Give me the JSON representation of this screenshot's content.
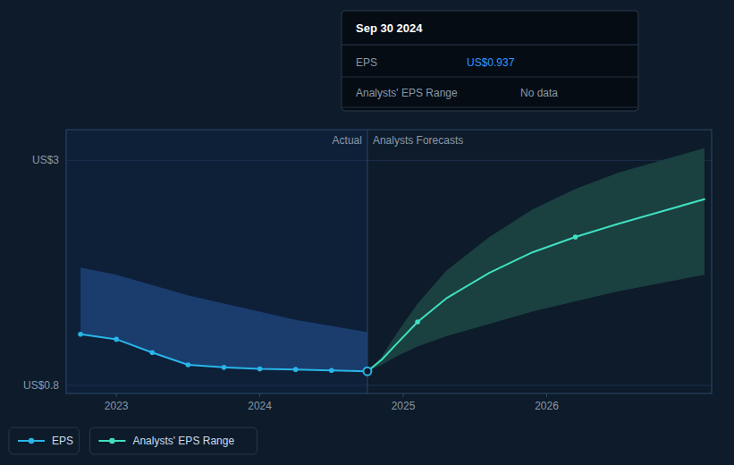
{
  "chart_data": {
    "type": "line",
    "xlim": [
      2022.65,
      2027.15
    ],
    "xticks": [
      2023,
      2024,
      2025,
      2026
    ],
    "ylim": [
      0.72,
      3.3
    ],
    "yticks": [
      {
        "value": 0.8,
        "label": "US$0.8"
      },
      {
        "value": 3,
        "label": "US$3"
      }
    ],
    "grid": true,
    "divider": {
      "x": 2024.75,
      "labels": [
        "Actual",
        "Analysts Forecasts"
      ]
    },
    "series": [
      {
        "type": "area",
        "color": "#1a3d6e",
        "x": [
          2022.75,
          2023.0,
          2023.25,
          2023.5,
          2023.75,
          2024.0,
          2024.25,
          2024.5,
          2024.75
        ],
        "lower": [
          1.3,
          1.25,
          1.12,
          1.0,
          0.975,
          0.96,
          0.955,
          0.945,
          0.937
        ],
        "upper": [
          1.95,
          1.88,
          1.78,
          1.68,
          1.6,
          1.52,
          1.44,
          1.38,
          1.32
        ]
      },
      {
        "type": "area",
        "color": "#1a4040",
        "x": [
          2024.75,
          2024.85,
          2024.95,
          2025.1,
          2025.3,
          2025.6,
          2025.9,
          2026.2,
          2026.5,
          2026.8,
          2027.1
        ],
        "lower": [
          0.937,
          1.0,
          1.08,
          1.18,
          1.28,
          1.4,
          1.52,
          1.62,
          1.72,
          1.8,
          1.88
        ],
        "upper": [
          0.937,
          1.08,
          1.3,
          1.6,
          1.92,
          2.25,
          2.52,
          2.72,
          2.88,
          3.0,
          3.12
        ]
      },
      {
        "type": "line",
        "name": "EPS",
        "color": "#29b5e8",
        "x": [
          2022.75,
          2023.0,
          2023.25,
          2023.5,
          2023.75,
          2024.0,
          2024.25,
          2024.5,
          2024.75
        ],
        "values": [
          1.3,
          1.25,
          1.12,
          1.0,
          0.975,
          0.96,
          0.955,
          0.945,
          0.937
        ]
      },
      {
        "type": "line",
        "name": "Analysts' EPS Range",
        "color": "#40e0c0",
        "x": [
          2024.75,
          2024.85,
          2024.95,
          2025.1,
          2025.3,
          2025.6,
          2025.9,
          2026.2,
          2026.5,
          2026.8,
          2027.1
        ],
        "values": [
          0.937,
          1.05,
          1.2,
          1.42,
          1.65,
          1.9,
          2.1,
          2.25,
          2.38,
          2.5,
          2.62
        ]
      },
      {
        "type": "scatter",
        "color": "#29b5e8",
        "x": [
          2022.75,
          2023.0,
          2023.25,
          2023.5,
          2023.75,
          2024.0,
          2024.25,
          2024.5
        ],
        "values": [
          1.3,
          1.25,
          1.12,
          1.0,
          0.975,
          0.96,
          0.955,
          0.945
        ]
      },
      {
        "type": "scatter",
        "color": "#29b5e8",
        "marker": "open",
        "x": [
          2024.75
        ],
        "values": [
          0.937
        ]
      },
      {
        "type": "scatter",
        "color": "#40e0c0",
        "x": [
          2025.1,
          2026.2
        ],
        "values": [
          1.42,
          2.25
        ]
      }
    ],
    "tooltip": {
      "title": "Sep 30 2024",
      "rows": [
        {
          "label": "EPS",
          "value": "US$0.937",
          "color": "#3399ff"
        },
        {
          "label": "Analysts' EPS Range",
          "value": "No data"
        }
      ]
    }
  }
}
